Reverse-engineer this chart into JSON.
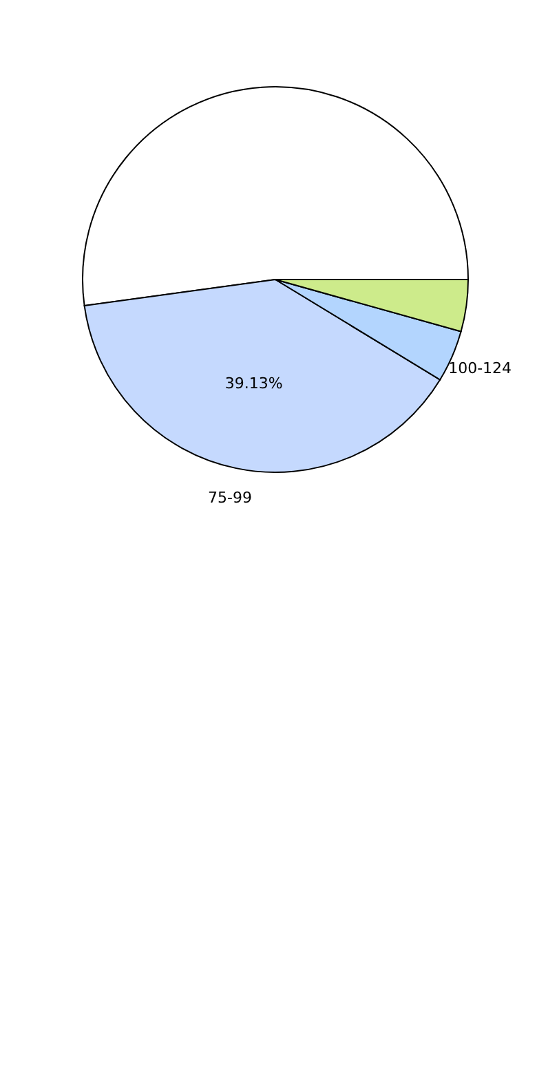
{
  "chart_data": {
    "type": "pie",
    "categories": [
      null,
      "75-99",
      "100-124",
      null
    ],
    "values": [
      52.17,
      39.13,
      4.35,
      4.35
    ],
    "value_labels": [
      null,
      "39.13%",
      null,
      null
    ],
    "colors": [
      "#ffffff",
      "#c5d9fe",
      "#b3d5fe",
      "#cdeb8b"
    ],
    "legend": false
  }
}
